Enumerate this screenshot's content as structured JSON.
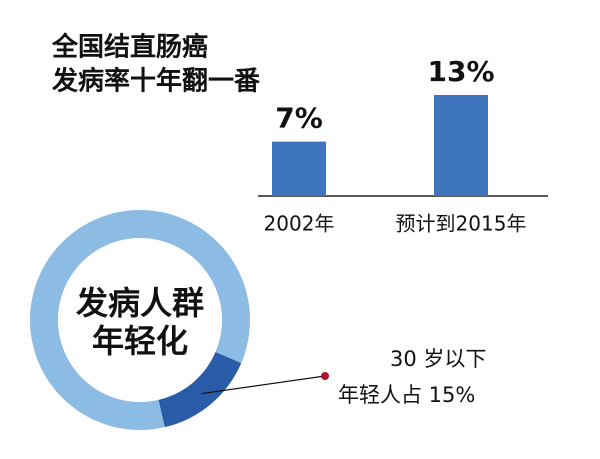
{
  "chart_data": [
    {
      "type": "bar",
      "title": [
        "全国结直肠癌",
        "发病率十年翻一番"
      ],
      "categories": [
        "2002年",
        "预计到2015年"
      ],
      "values": [
        7,
        13
      ],
      "value_labels": [
        "7%",
        "13%"
      ],
      "color": "#3f75bd"
    },
    {
      "type": "pie",
      "donut": true,
      "center_label": [
        "发病人群",
        "年轻化"
      ],
      "values": [
        15,
        85
      ],
      "colors": [
        "#2a5ba8",
        "#8cbbe4"
      ],
      "annotation": [
        "30 岁以下",
        "年轻人占 15%"
      ]
    }
  ]
}
